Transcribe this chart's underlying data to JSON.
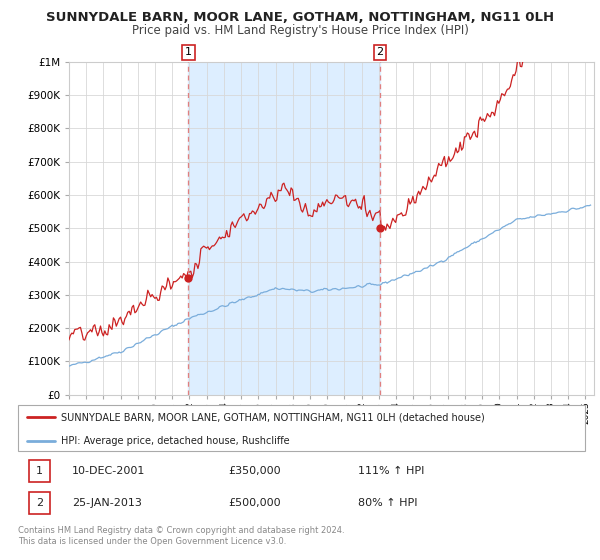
{
  "title": "SUNNYDALE BARN, MOOR LANE, GOTHAM, NOTTINGHAM, NG11 0LH",
  "subtitle": "Price paid vs. HM Land Registry's House Price Index (HPI)",
  "title_fontsize": 9.5,
  "subtitle_fontsize": 8.5,
  "hpi_color": "#7aaddb",
  "price_color": "#cc2222",
  "marker_color": "#cc2222",
  "shaded_color": "#ddeeff",
  "dashed_line_color": "#e08080",
  "ylim": [
    0,
    1000000
  ],
  "xlim_start": 1995.0,
  "xlim_end": 2025.5,
  "sale1_x": 2001.94,
  "sale1_y": 350000,
  "sale1_label": "1",
  "sale2_x": 2013.07,
  "sale2_y": 500000,
  "sale2_label": "2",
  "legend_line1": "SUNNYDALE BARN, MOOR LANE, GOTHAM, NOTTINGHAM, NG11 0LH (detached house)",
  "legend_line2": "HPI: Average price, detached house, Rushcliffe",
  "note1_label": "1",
  "note1_date": "10-DEC-2001",
  "note1_price": "£350,000",
  "note1_hpi": "111% ↑ HPI",
  "note2_label": "2",
  "note2_date": "25-JAN-2013",
  "note2_price": "£500,000",
  "note2_hpi": "80% ↑ HPI",
  "footer": "Contains HM Land Registry data © Crown copyright and database right 2024.\nThis data is licensed under the Open Government Licence v3.0."
}
